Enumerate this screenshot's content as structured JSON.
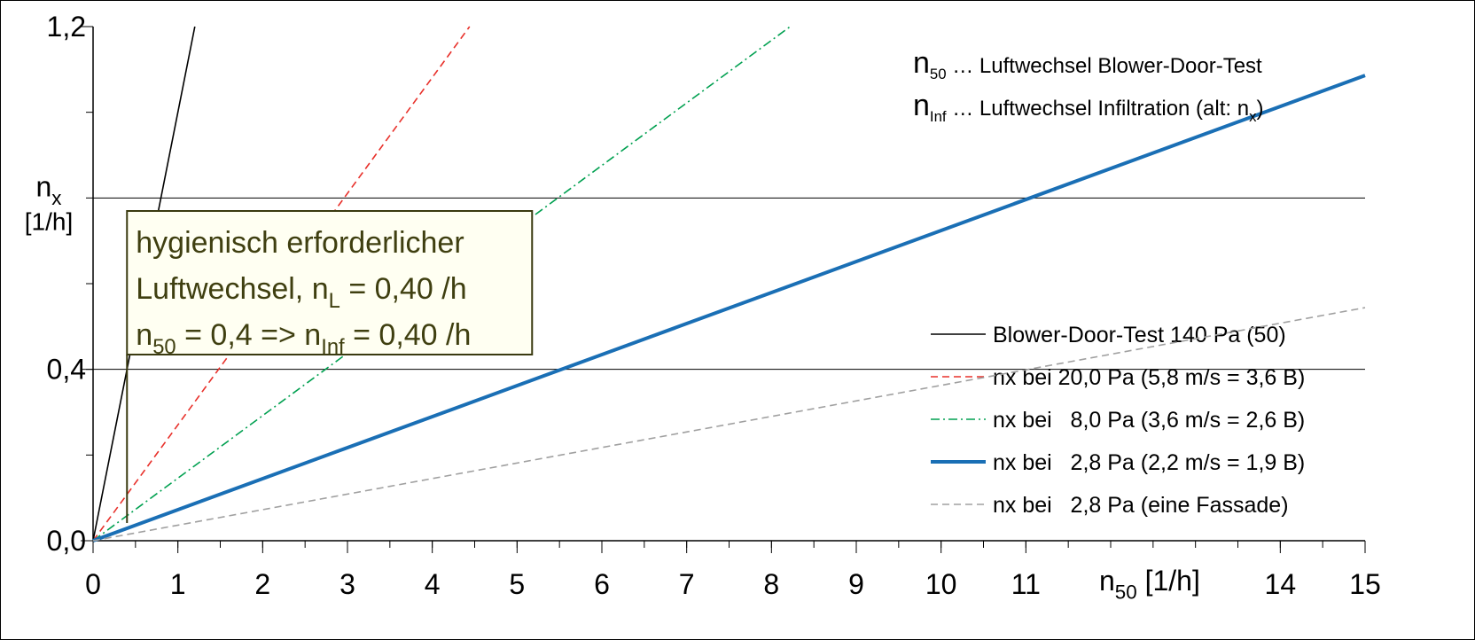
{
  "chart_data": {
    "type": "line",
    "xlim": [
      0,
      15
    ],
    "ylim": [
      0,
      1.2
    ],
    "xticks": [
      0,
      1,
      2,
      3,
      4,
      5,
      6,
      7,
      8,
      9,
      10,
      11,
      14,
      15
    ],
    "yticks": [
      {
        "value": 0,
        "label": "0,0"
      },
      {
        "value": 0.4,
        "label": "0,4"
      },
      {
        "value": 1.2,
        "label": "1,2"
      }
    ],
    "ylabel": [
      "n",
      "x"
    ],
    "ylabel_unit": "[1/h]",
    "xlabel": [
      "n",
      "50",
      " [1/h]"
    ],
    "hlines": [
      0.4,
      0.8
    ],
    "legend": "lower right",
    "notes": [
      [
        "n",
        "50",
        " … Luftwechsel Blower-Door-Test"
      ],
      [
        "n",
        "Inf",
        " … Luftwechsel Infiltration (alt: n",
        "x",
        ")"
      ]
    ],
    "annotation": {
      "x": 0.4,
      "lines": [
        [
          "hygienisch erforderlicher"
        ],
        [
          "Luftwechsel, n",
          "L",
          " = 0,40 /h"
        ],
        [
          "n",
          "50",
          " = 0,4 => n",
          "Inf",
          " = 0,40 /h"
        ]
      ]
    },
    "series": [
      {
        "name": "Blower-Door-Test 140 Pa (50)",
        "color": "#000000",
        "dash": "solid",
        "x": [
          0,
          1.2
        ],
        "values": [
          0,
          1.2
        ]
      },
      {
        "name": "nx bei 20,0 Pa (5,8 m/s = 3,6 B)",
        "color": "#e8302a",
        "dash": "dashed",
        "x": [
          0,
          4.44
        ],
        "values": [
          0,
          1.2
        ]
      },
      {
        "name": "nx bei   8,0 Pa (3,6 m/s = 2,6 B)",
        "color": "#00a050",
        "dash": "dashdot",
        "x": [
          0,
          8.22
        ],
        "values": [
          0,
          1.2
        ]
      },
      {
        "name": "nx bei   2,8 Pa (2,2 m/s = 1,9 B)",
        "color": "#1a6fb5",
        "dash": "thick",
        "x": [
          0,
          15
        ],
        "values": [
          0,
          1.086
        ]
      },
      {
        "name": "nx bei   2,8 Pa (eine Fassade)",
        "color": "#a0a0a0",
        "dash": "dashed",
        "x": [
          0,
          15
        ],
        "values": [
          0,
          0.544
        ]
      }
    ]
  }
}
